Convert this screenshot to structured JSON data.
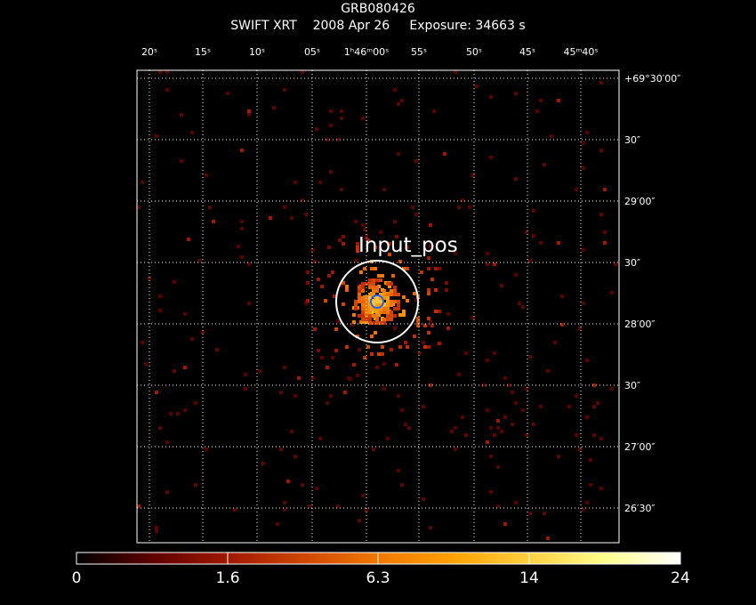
{
  "header": {
    "target": "GRB080426",
    "line2": "SWIFT XRT    2008 Apr 26     Exposure: 34663 s"
  },
  "image": {
    "marker_label": "Input_pos",
    "ra_ticks": [
      {
        "label": "20ˢ"
      },
      {
        "label": "15ˢ"
      },
      {
        "label": "10ˢ"
      },
      {
        "label": "05ˢ"
      },
      {
        "label": "1ʰ46ᵐ00ˢ"
      },
      {
        "label": "55ˢ"
      },
      {
        "label": "50ˢ"
      },
      {
        "label": "45ˢ"
      },
      {
        "label": "45ᵐ40ˢ"
      }
    ],
    "dec_ticks": [
      {
        "label": "+69°30′00″"
      },
      {
        "label": "30″"
      },
      {
        "label": "29′00″"
      },
      {
        "label": "30″"
      },
      {
        "label": "28′00″"
      },
      {
        "label": "30″"
      },
      {
        "label": "27′00″"
      },
      {
        "label": "26′30″"
      }
    ],
    "grid": true,
    "colors": {
      "background": "#000000",
      "grid": "#ffffff",
      "frame": "#ffffff",
      "source_circle": "#ffffff",
      "psf_circle": "#2060ff"
    }
  },
  "colorbar": {
    "labels": [
      "0",
      "1.6",
      "6.3",
      "14",
      "24"
    ],
    "colormap": [
      "#000000",
      "#5a0000",
      "#a01800",
      "#d04800",
      "#f07800",
      "#ffa000",
      "#ffd040",
      "#ffff90",
      "#ffffff"
    ]
  }
}
